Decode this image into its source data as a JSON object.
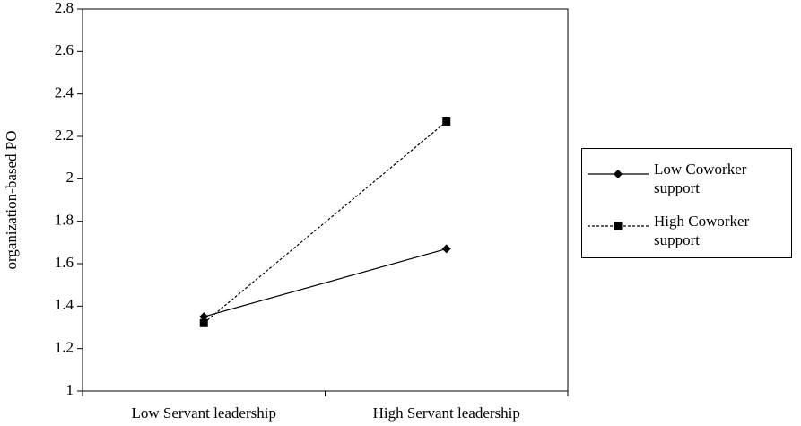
{
  "chart_data": {
    "type": "line",
    "y_label": "organization-based PO",
    "categories": [
      "Low Servant leadership",
      "High Servant leadership"
    ],
    "series": [
      {
        "name": "Low Coworker support",
        "color": "#000000",
        "style": "solid",
        "marker": "diamond",
        "values": [
          1.35,
          1.67
        ]
      },
      {
        "name": "High Coworker support",
        "color": "#000000",
        "style": "dashed",
        "marker": "square",
        "values": [
          1.32,
          2.27
        ]
      }
    ],
    "ylim": [
      1,
      2.8
    ],
    "yticks": [
      1,
      1.2,
      1.4,
      1.6,
      1.8,
      2,
      2.2,
      2.4,
      2.6,
      2.8
    ],
    "legend": "right"
  }
}
